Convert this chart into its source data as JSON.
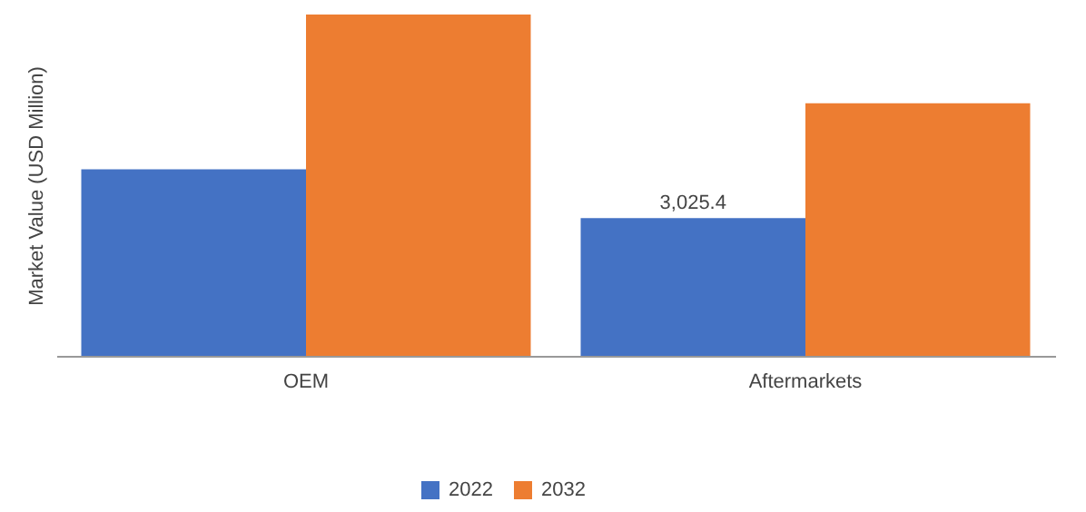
{
  "chart_data": {
    "type": "bar",
    "ylabel": "Market Value (USD Million)",
    "categories": [
      "OEM",
      "Aftermarkets"
    ],
    "legend": "bottom",
    "grid": false,
    "series": [
      {
        "name": "2022",
        "color": "#4472c4",
        "values": [
          4100,
          3025.4
        ],
        "value_labels": [
          null,
          "3,025.4"
        ]
      },
      {
        "name": "2032",
        "color": "#ed7d31",
        "values": [
          7500,
          5550
        ]
      }
    ]
  }
}
